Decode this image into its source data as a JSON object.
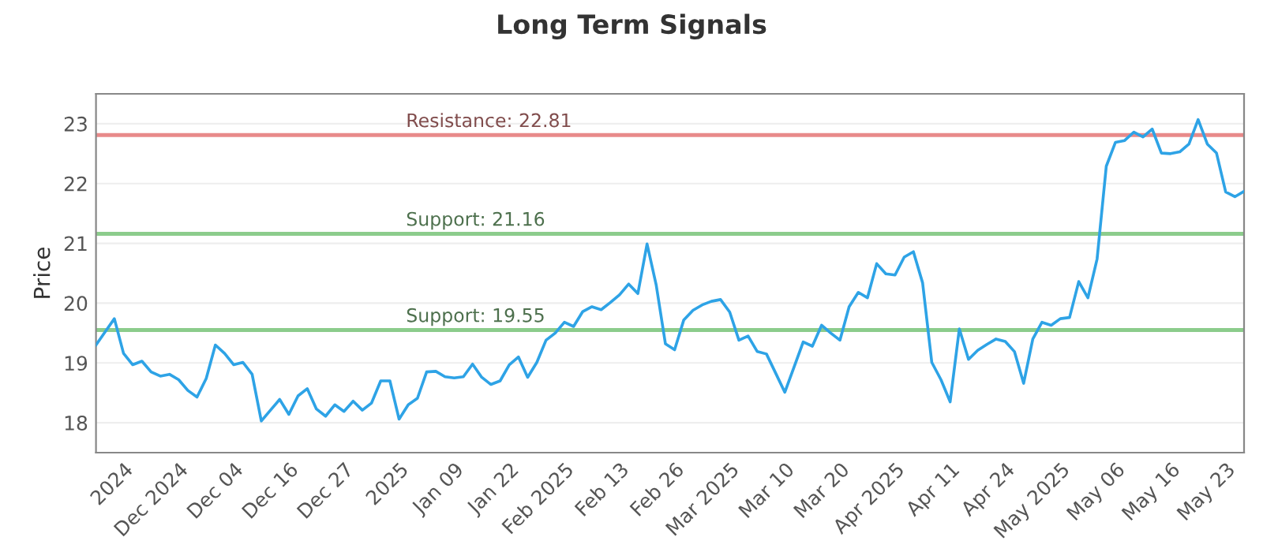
{
  "chart_data": {
    "type": "line",
    "title": "Long Term Signals",
    "ylabel": "Price",
    "categories": [
      null,
      null,
      null,
      "2024",
      null,
      null,
      null,
      null,
      null,
      "Dec 2024",
      null,
      null,
      null,
      null,
      null,
      "Dec 04",
      null,
      null,
      null,
      null,
      null,
      "Dec 16",
      null,
      null,
      null,
      null,
      null,
      "Dec 27",
      null,
      null,
      null,
      null,
      null,
      "2025",
      null,
      null,
      null,
      null,
      null,
      "Jan 09",
      null,
      null,
      null,
      null,
      null,
      "Jan 22",
      null,
      null,
      null,
      null,
      null,
      "Feb 2025",
      null,
      null,
      null,
      null,
      null,
      "Feb 13",
      null,
      null,
      null,
      null,
      null,
      "Feb 26",
      null,
      null,
      null,
      null,
      null,
      "Mar 2025",
      null,
      null,
      null,
      null,
      null,
      "Mar 10",
      null,
      null,
      null,
      null,
      null,
      "Mar 20",
      null,
      null,
      null,
      null,
      null,
      "Apr 2025",
      null,
      null,
      null,
      null,
      null,
      "Apr 11",
      null,
      null,
      null,
      null,
      null,
      "Apr 24",
      null,
      null,
      null,
      null,
      null,
      "May 2025",
      null,
      null,
      null,
      null,
      null,
      "May 06",
      null,
      null,
      null,
      null,
      null,
      "May 16",
      null,
      null,
      null,
      null,
      null,
      "May 23",
      null,
      null
    ],
    "series": [
      {
        "color": "#2ea3e6",
        "values": [
          19.3,
          19.52,
          19.74,
          19.16,
          18.97,
          19.03,
          18.85,
          18.78,
          18.81,
          18.72,
          18.54,
          18.43,
          18.74,
          19.3,
          19.16,
          18.97,
          19.01,
          18.81,
          18.03,
          18.21,
          18.39,
          18.14,
          18.45,
          18.57,
          18.23,
          18.11,
          18.3,
          18.19,
          18.36,
          18.21,
          18.33,
          18.7,
          18.7,
          18.06,
          18.3,
          18.41,
          18.85,
          18.86,
          18.77,
          18.75,
          18.77,
          18.98,
          18.76,
          18.64,
          18.7,
          18.97,
          19.1,
          18.76,
          19.01,
          19.38,
          19.5,
          19.68,
          19.61,
          19.86,
          19.94,
          19.89,
          20.01,
          20.14,
          20.32,
          20.16,
          20.99,
          20.3,
          19.32,
          19.22,
          19.72,
          19.88,
          19.97,
          20.03,
          20.06,
          19.85,
          19.38,
          19.45,
          19.19,
          19.15,
          18.83,
          18.51,
          18.93,
          19.35,
          19.28,
          19.63,
          19.5,
          19.38,
          19.94,
          20.18,
          20.09,
          20.66,
          20.49,
          20.47,
          20.77,
          20.86,
          20.34,
          19.01,
          18.72,
          18.35,
          19.57,
          19.06,
          19.21,
          19.31,
          19.4,
          19.36,
          19.19,
          18.66,
          19.4,
          19.68,
          19.63,
          19.74,
          19.76,
          20.36,
          20.09,
          20.74,
          22.29,
          22.69,
          22.72,
          22.86,
          22.78,
          22.91,
          22.51,
          22.5,
          22.53,
          22.66,
          23.07,
          22.66,
          22.51,
          21.86,
          21.78,
          21.87
        ]
      }
    ],
    "ylim": [
      17.5,
      23.5
    ],
    "yticks": [
      18,
      19,
      20,
      21,
      22,
      23
    ],
    "ref_lines": [
      {
        "axis": "y",
        "value": 22.81,
        "label": "Resistance: 22.81",
        "color": "#e88a8a"
      },
      {
        "axis": "y",
        "value": 21.16,
        "label": "Support: 21.16",
        "color": "#8ccc8c"
      },
      {
        "axis": "y",
        "value": 19.55,
        "label": "Support: 19.55",
        "color": "#8ccc8c"
      }
    ],
    "grid": "y",
    "marker": "none",
    "line_style": "solid",
    "legend": false
  }
}
